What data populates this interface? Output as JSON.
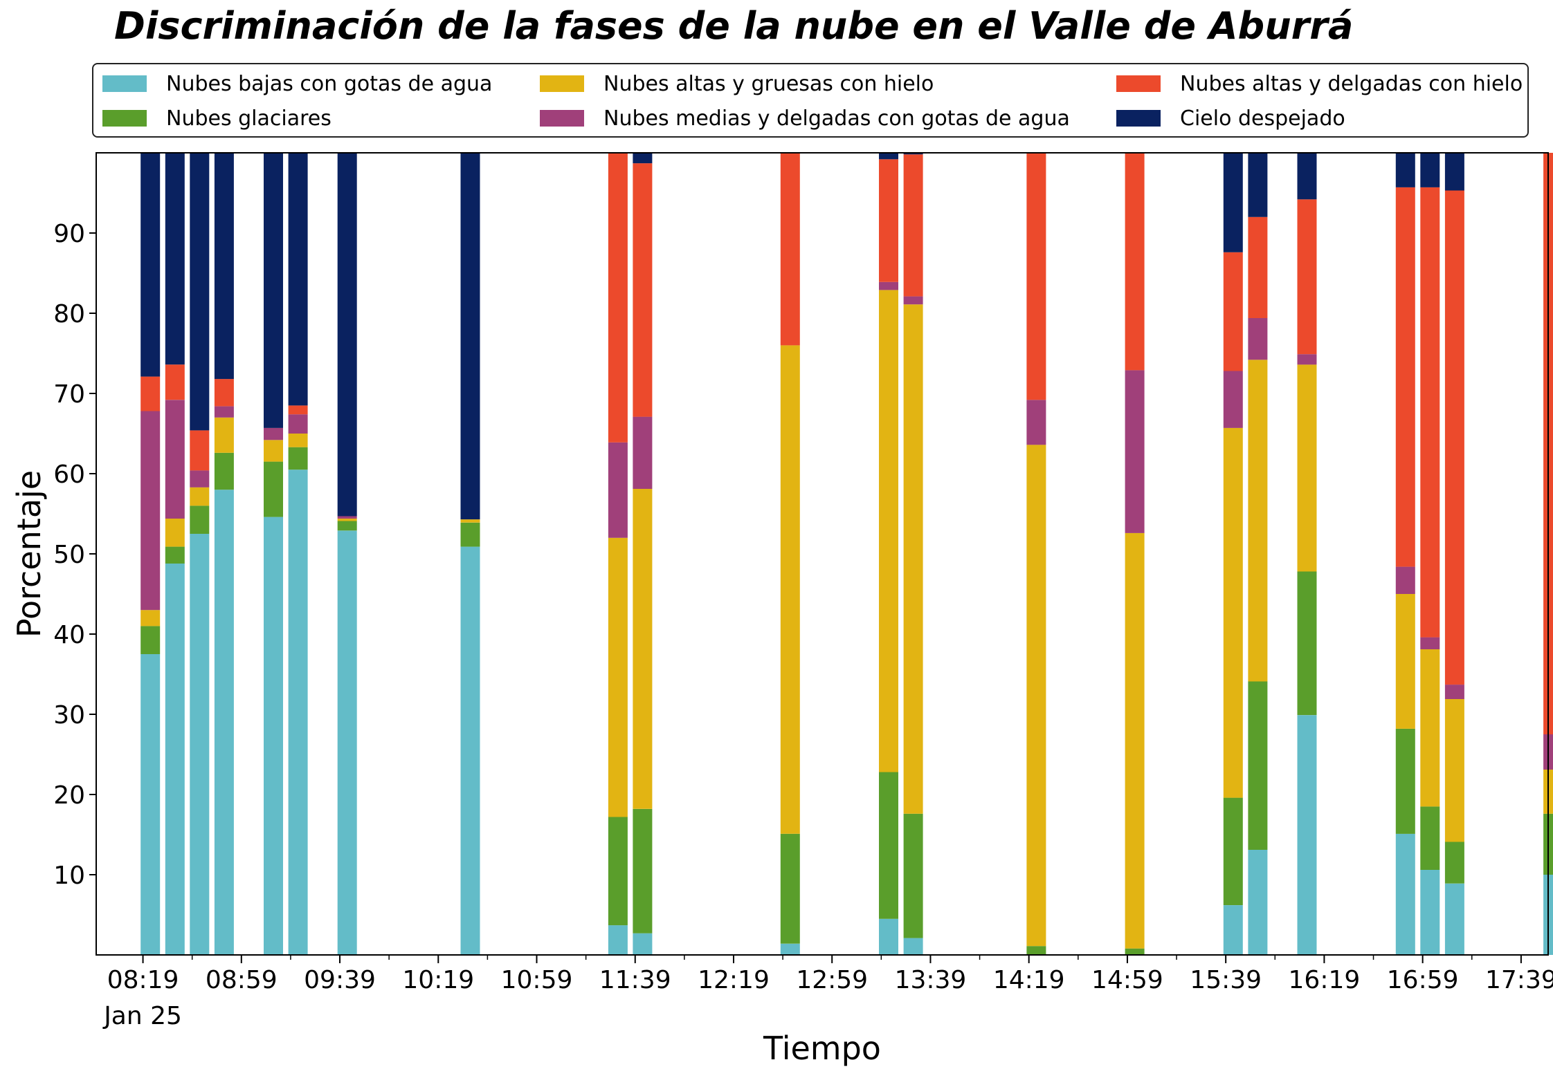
{
  "chart_data": {
    "type": "bar",
    "stacked": true,
    "title": "Discriminación de la fases de la nube en el Valle de Aburrá",
    "xlabel": "Tiempo",
    "ylabel": "Porcentaje",
    "ylim": [
      0,
      100
    ],
    "xlim_minutes_after_0800": [
      0,
      590
    ],
    "yticks": [
      10,
      20,
      30,
      40,
      50,
      60,
      70,
      80,
      90
    ],
    "xtick_labels": [
      "08:19",
      "08:59",
      "09:39",
      "10:19",
      "10:59",
      "11:39",
      "12:19",
      "12:59",
      "13:39",
      "14:19",
      "14:59",
      "15:39",
      "16:19",
      "16:59",
      "17:39"
    ],
    "xtick_date_label": "Jan 25",
    "grid": false,
    "legend_position": "top",
    "times": [
      "08:22",
      "08:32",
      "08:42",
      "08:52",
      "09:12",
      "09:22",
      "09:42",
      "10:32",
      "11:32",
      "11:42",
      "12:42",
      "13:22",
      "13:32",
      "14:22",
      "15:02",
      "15:42",
      "15:52",
      "16:12",
      "16:52",
      "17:02",
      "17:12",
      "17:52"
    ],
    "series": [
      {
        "name": "Nubes bajas con gotas de agua",
        "color": "#63BCC8",
        "values": [
          37.5,
          48.8,
          52.5,
          58,
          54.6,
          60.5,
          52.9,
          50.9,
          3.7,
          2.7,
          1.4,
          4.5,
          2.1,
          0,
          0,
          6.2,
          13.1,
          29.9,
          15.1,
          10.6,
          8.9,
          10
        ]
      },
      {
        "name": "Nubes glaciares",
        "color": "#5A9E2B",
        "values": [
          3.5,
          2.1,
          3.5,
          4.6,
          6.9,
          2.8,
          1.2,
          3,
          13.5,
          15.5,
          13.7,
          18.3,
          15.5,
          1.1,
          0.8,
          13.4,
          21,
          17.9,
          13.1,
          7.9,
          5.2,
          7.6
        ]
      },
      {
        "name": "Nubes altas y gruesas con hielo",
        "color": "#E2B413",
        "values": [
          2,
          3.5,
          2.3,
          4.4,
          2.7,
          1.7,
          0.3,
          0.4,
          34.8,
          39.9,
          60.9,
          60.1,
          63.5,
          62.5,
          51.8,
          46.1,
          40.1,
          25.8,
          16.8,
          19.6,
          17.8,
          5.5
        ]
      },
      {
        "name": "Nubes medias y delgadas con gotas de agua",
        "color": "#A0407A",
        "values": [
          24.8,
          14.8,
          2.1,
          1.4,
          1.5,
          2.4,
          0.3,
          0,
          11.9,
          9,
          0,
          1,
          1,
          5.6,
          20.3,
          7.1,
          5.2,
          1.3,
          3.4,
          1.5,
          1.8,
          4.4
        ]
      },
      {
        "name": "Nubes altas y delgadas con hielo",
        "color": "#EC4A2C",
        "values": [
          4.3,
          4.4,
          5,
          3.4,
          0,
          1.1,
          0,
          0,
          36.1,
          31.6,
          24.2,
          15.3,
          17.7,
          30.9,
          27.1,
          14.8,
          12.6,
          19.3,
          47.3,
          56.1,
          61.6,
          72.8
        ]
      },
      {
        "name": "Cielo despejado",
        "color": "#0A2260",
        "values": [
          27.9,
          26.4,
          34.6,
          28.2,
          34.3,
          31.5,
          45.3,
          45.7,
          0,
          1.3,
          0,
          0.8,
          0.2,
          0,
          0,
          12.4,
          8,
          5.8,
          4.3,
          4.3,
          4.7,
          0
        ]
      }
    ]
  }
}
